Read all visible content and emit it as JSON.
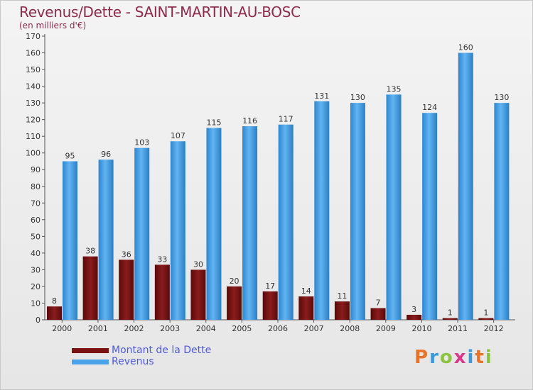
{
  "header": {
    "title": "Revenus/Dette - SAINT-MARTIN-AU-BOSC",
    "subtitle": "(en milliers d'€)"
  },
  "legend": {
    "items": [
      {
        "label": "Montant de la Dette",
        "color": "#7a1212"
      },
      {
        "label": "Revenus",
        "color": "#4aa3e8"
      }
    ]
  },
  "logo": {
    "text": "Proxiti",
    "colors": [
      "#e8742a",
      "#3a9ad9",
      "#8cc43f",
      "#d9398a",
      "#3a9ad9",
      "#e8742a",
      "#8cc43f"
    ]
  },
  "chart_data": {
    "type": "bar",
    "categories": [
      "2000",
      "2001",
      "2002",
      "2003",
      "2004",
      "2005",
      "2006",
      "2007",
      "2008",
      "2009",
      "2010",
      "2011",
      "2012"
    ],
    "series": [
      {
        "name": "Montant de la Dette",
        "color": "#7a1212",
        "values": [
          8,
          38,
          36,
          33,
          30,
          20,
          17,
          14,
          11,
          7,
          3,
          1,
          1
        ]
      },
      {
        "name": "Revenus",
        "color": "#4aa3e8",
        "values": [
          95,
          96,
          103,
          107,
          115,
          116,
          117,
          131,
          130,
          135,
          124,
          160,
          130
        ]
      }
    ],
    "title": "Revenus/Dette - SAINT-MARTIN-AU-BOSC",
    "subtitle": "(en milliers d'€)",
    "ylim": [
      0,
      170
    ],
    "ytick_step": 10,
    "grid": false,
    "legend_position": "bottom-left",
    "data_labels": true
  }
}
